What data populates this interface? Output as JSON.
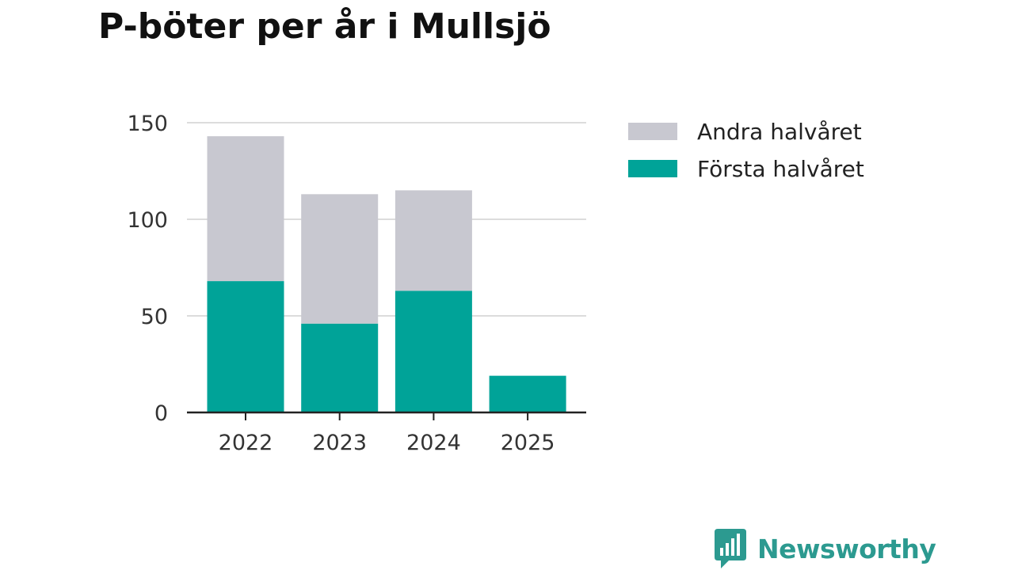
{
  "title": "P-böter per år i Mullsjö",
  "brand": {
    "name": "Newsworthy",
    "color": "#2c9a90",
    "icon": "newsworthy-logo-icon"
  },
  "colors": {
    "first_half": "#00a398",
    "second_half": "#c8c8d0",
    "grid": "#dcdcdc",
    "axis": "#222222"
  },
  "chart_data": {
    "type": "bar",
    "stacked": true,
    "categories": [
      "2022",
      "2023",
      "2024",
      "2025"
    ],
    "series": [
      {
        "name": "Första halvåret",
        "color": "#00a398",
        "values": [
          68,
          46,
          63,
          19
        ]
      },
      {
        "name": "Andra halvåret",
        "color": "#c8c8d0",
        "values": [
          75,
          67,
          52,
          0
        ]
      }
    ],
    "yticks": [
      0,
      50,
      100,
      150
    ],
    "ylim": [
      0,
      150
    ],
    "grid": true,
    "legend": {
      "placement": "right",
      "order": [
        "Andra halvåret",
        "Första halvåret"
      ]
    }
  }
}
